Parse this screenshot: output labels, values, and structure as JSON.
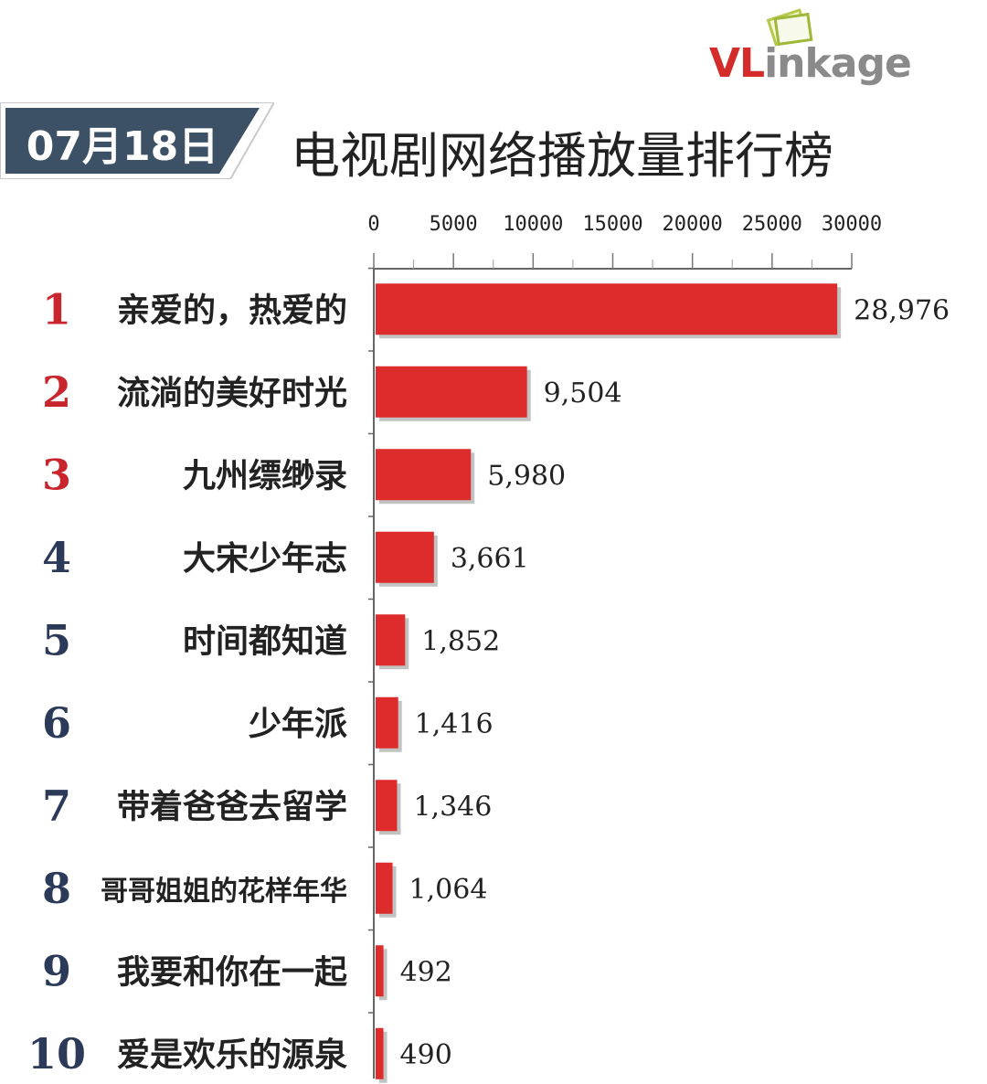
{
  "logo": {
    "prefix": "VL",
    "suffix": "inkage"
  },
  "date": "07月18日",
  "title": "电视剧网络播放量排行榜",
  "colors": {
    "bar": "#de2b2b",
    "bar_shadow": "#9a9a9a",
    "banner": "#3d5166",
    "rank_top3": "#c8252c",
    "rank_other": "#2c3a5a",
    "text": "#222222"
  },
  "chart_data": {
    "type": "bar",
    "orientation": "horizontal",
    "title": "电视剧网络播放量排行榜",
    "xlim": [
      0,
      30000
    ],
    "x_ticks": [
      0,
      5000,
      10000,
      15000,
      20000,
      25000,
      30000
    ],
    "x_tick_labels": [
      "0",
      "5000",
      "10000",
      "15000",
      "20000",
      "25000",
      "30000"
    ],
    "ranks": [
      "1",
      "2",
      "3",
      "4",
      "5",
      "6",
      "7",
      "8",
      "9",
      "10"
    ],
    "categories": [
      "亲爱的，热爱的",
      "流淌的美好时光",
      "九州缥缈录",
      "大宋少年志",
      "时间都知道",
      "少年派",
      "带着爸爸去留学",
      "哥哥姐姐的花样年华",
      "我要和你在一起",
      "爱是欢乐的源泉"
    ],
    "values": [
      28976,
      9504,
      5980,
      3661,
      1852,
      1416,
      1346,
      1064,
      492,
      490
    ],
    "value_labels": [
      "28,976",
      "9,504",
      "5,980",
      "3,661",
      "1,852",
      "1,416",
      "1,346",
      "1,064",
      "492",
      "490"
    ]
  }
}
